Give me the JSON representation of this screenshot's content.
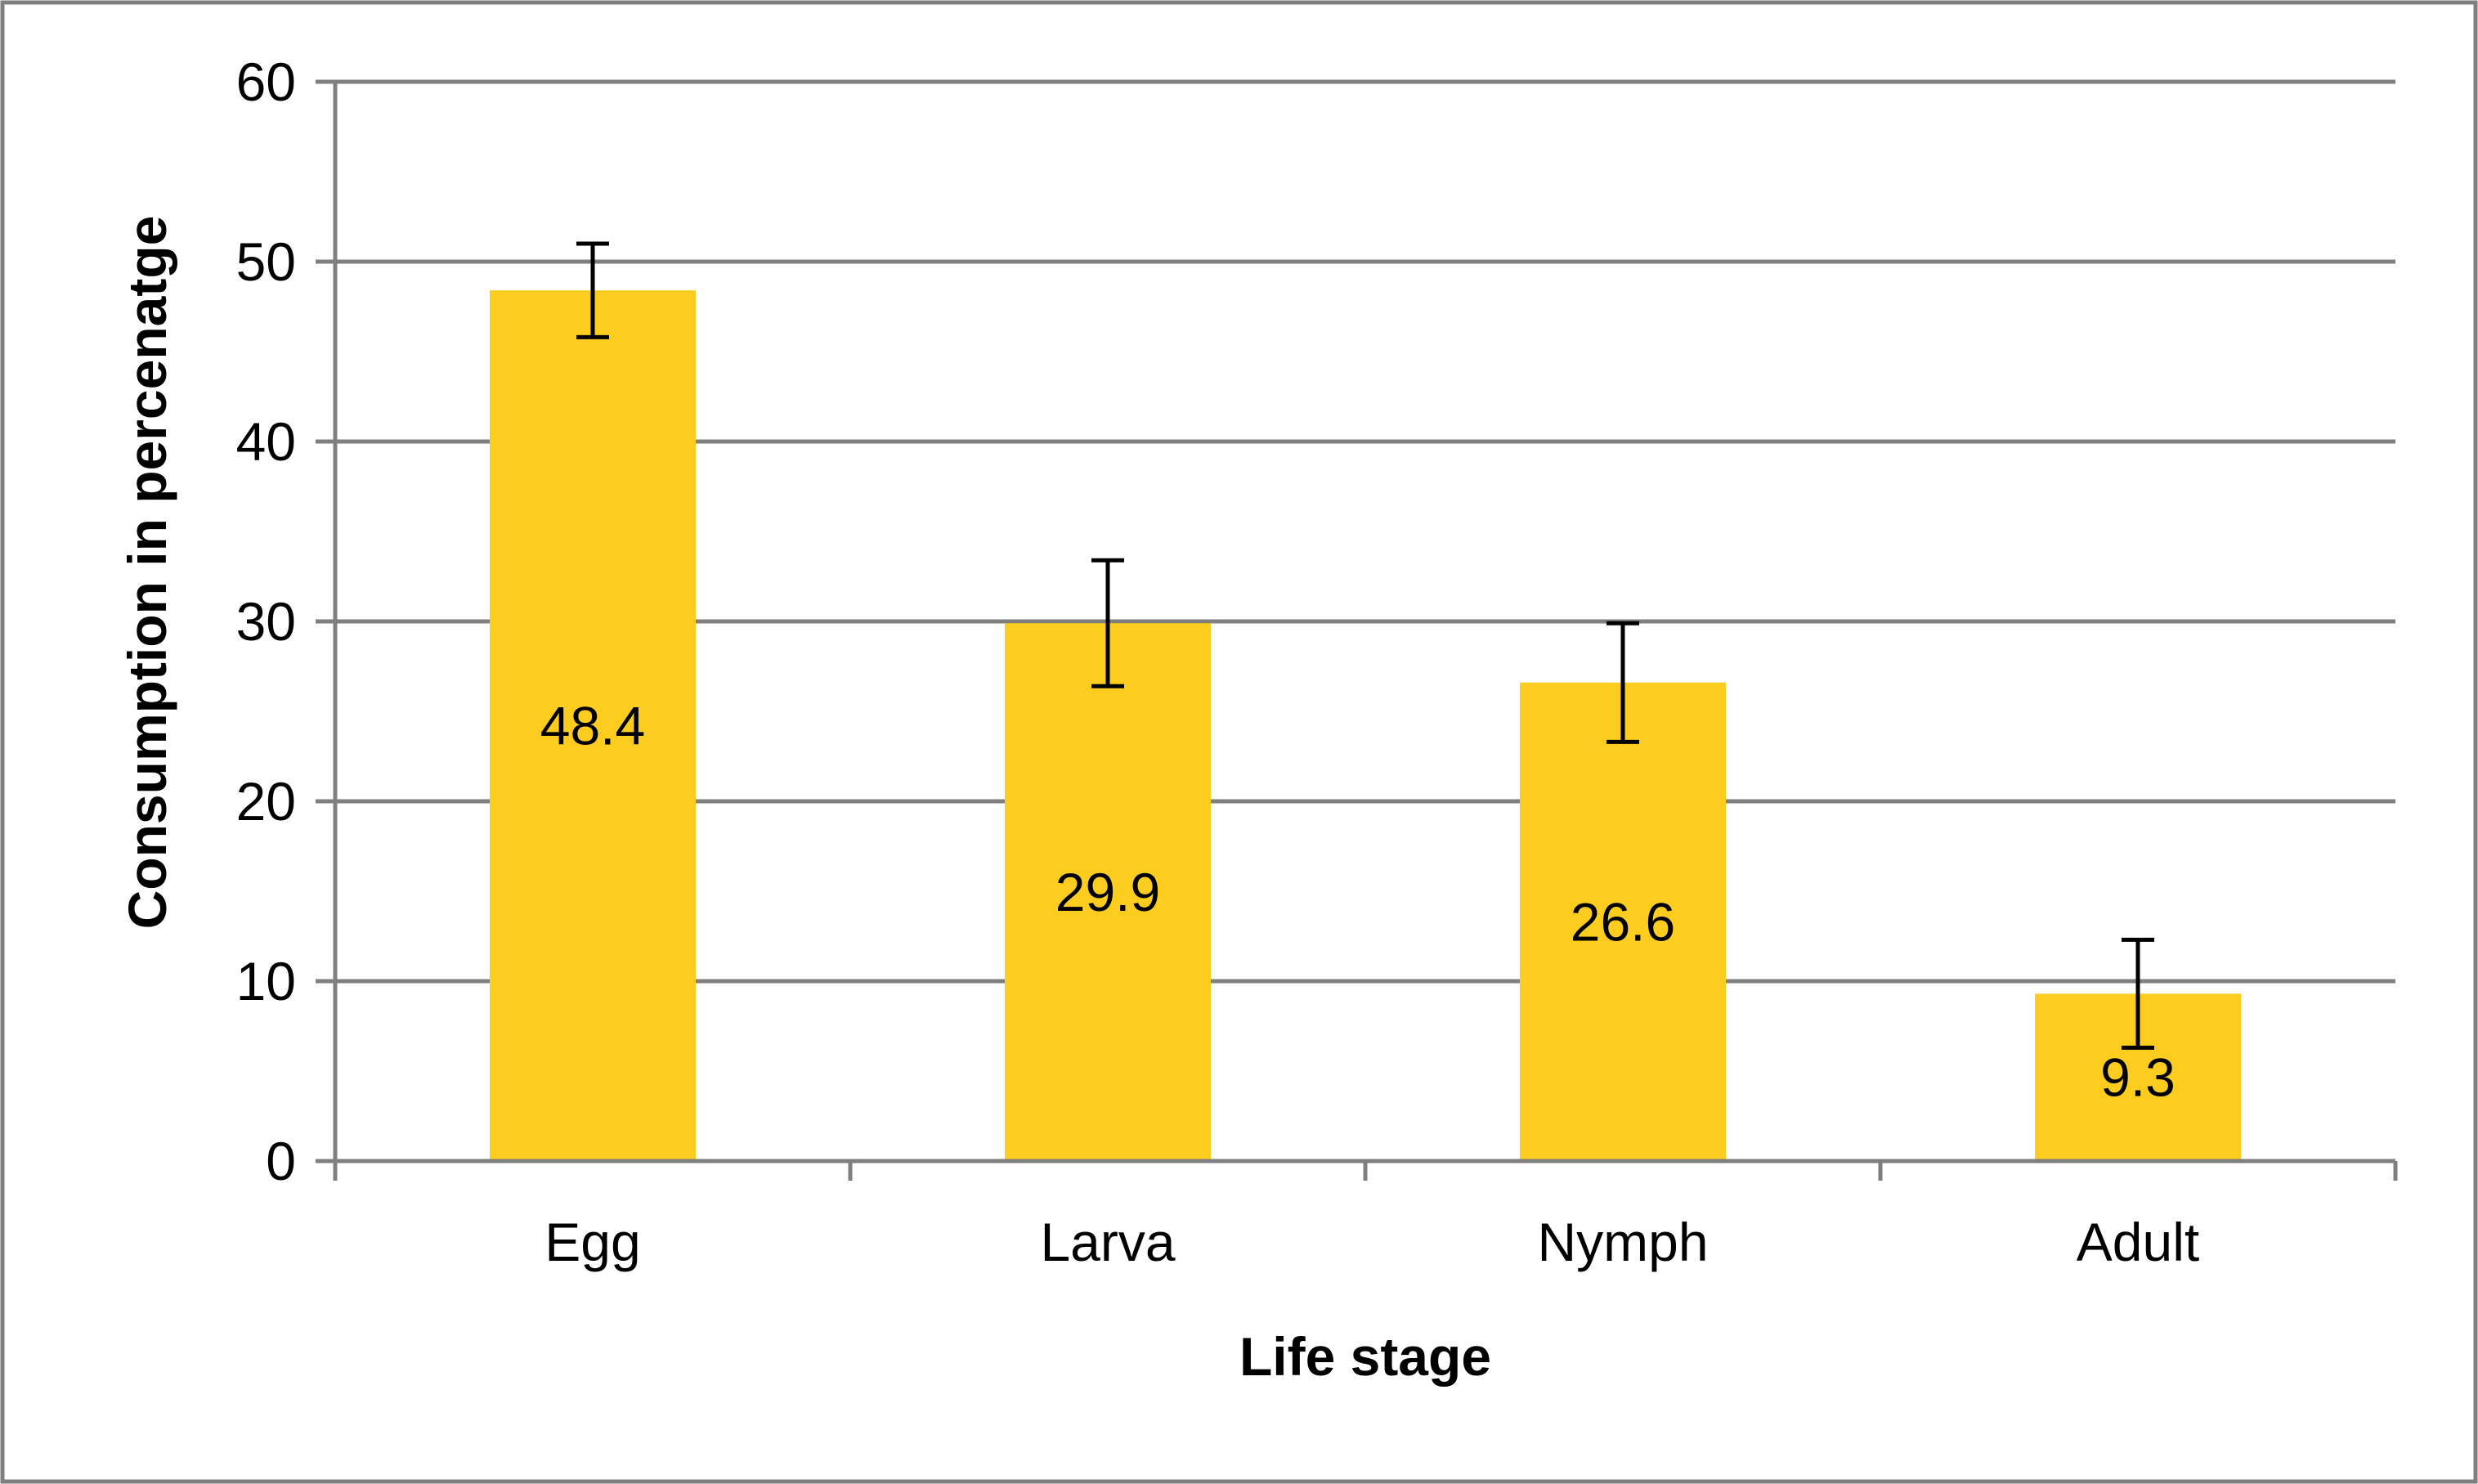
{
  "chart_data": {
    "type": "bar",
    "title": "",
    "xlabel": "Life stage",
    "ylabel": "Consumption in percenatge",
    "categories": [
      "Egg",
      "Larva",
      "Nymph",
      "Adult"
    ],
    "values": [
      48.4,
      29.9,
      26.6,
      9.3
    ],
    "data_labels": [
      "48.4",
      "29.9",
      "26.6",
      "9.3"
    ],
    "error_low": [
      45.8,
      26.4,
      23.3,
      6.3
    ],
    "error_high": [
      51.0,
      33.4,
      29.9,
      12.3
    ],
    "ylim": [
      0,
      60
    ],
    "yticks": [
      0,
      10,
      20,
      30,
      40,
      50,
      60
    ],
    "grid": true,
    "legend": "none",
    "bar_color": "#FCCC1E",
    "grid_color": "#7F7F7F",
    "axis_color": "#7F7F7F",
    "error_bar_color": "#000000",
    "border_color": "#7F7F7F"
  }
}
